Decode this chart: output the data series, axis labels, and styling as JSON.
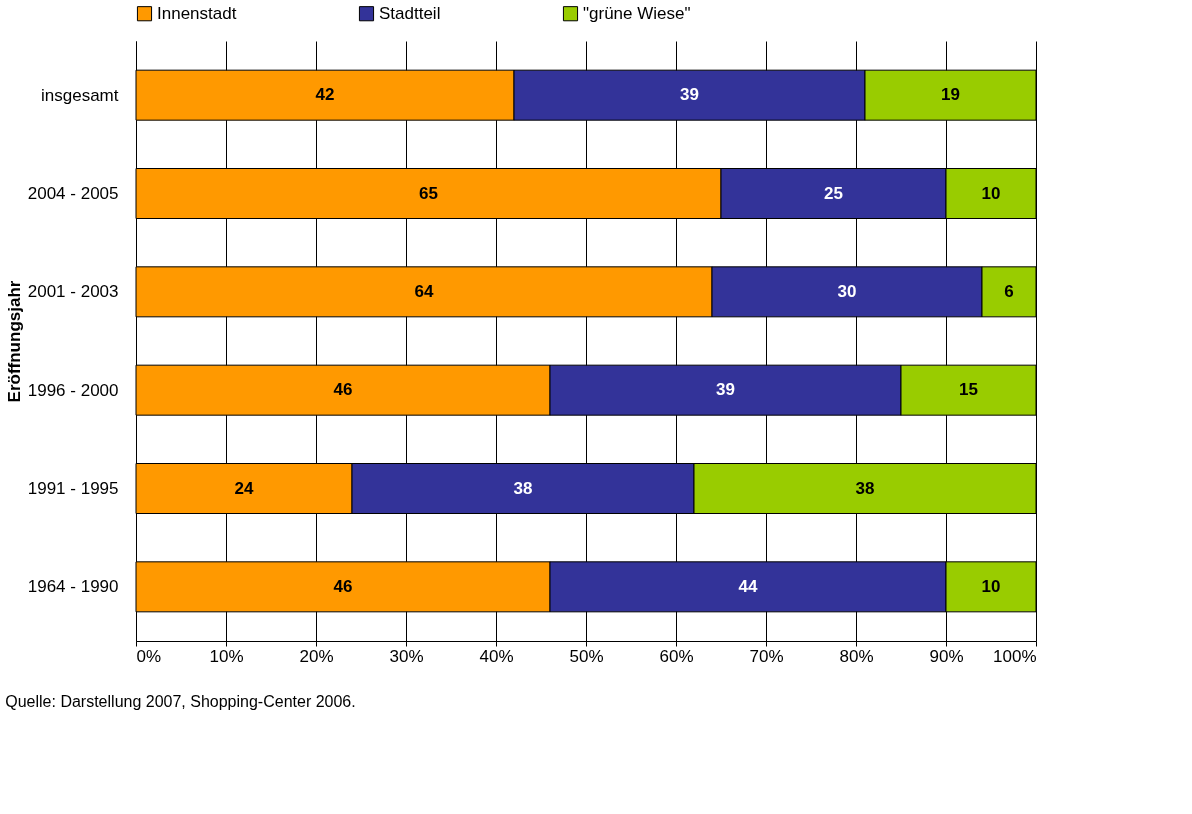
{
  "chart_data": {
    "type": "bar",
    "orientation": "horizontal",
    "stacked": true,
    "data_labels": true,
    "grid": "x",
    "legend": "top",
    "ylabel": "Eröffnungsjahr",
    "categories": [
      "insgesamt",
      "2004 - 2005",
      "2001 - 2003",
      "1996 - 2000",
      "1991 - 1995",
      "1964 - 1990"
    ],
    "series": [
      {
        "name": "Innenstadt",
        "color": "#ff9900",
        "values": [
          42,
          65,
          64,
          46,
          24,
          46
        ]
      },
      {
        "name": "Stadtteil",
        "color": "#333399",
        "values": [
          39,
          25,
          30,
          39,
          38,
          44
        ]
      },
      {
        "name": "\"grüne Wiese\"",
        "color": "#99cc00",
        "values": [
          19,
          10,
          6,
          15,
          38,
          10
        ]
      }
    ],
    "xlim": [
      0,
      100
    ],
    "xticks": [
      {
        "value": 0,
        "label": "0%"
      },
      {
        "value": 10,
        "label": "10%"
      },
      {
        "value": 20,
        "label": "20%"
      },
      {
        "value": 30,
        "label": "30%"
      },
      {
        "value": 40,
        "label": "40%"
      },
      {
        "value": 50,
        "label": "50%"
      },
      {
        "value": 60,
        "label": "60%"
      },
      {
        "value": 70,
        "label": "70%"
      },
      {
        "value": 80,
        "label": "80%"
      },
      {
        "value": 90,
        "label": "90%"
      },
      {
        "value": 100,
        "label": "100%"
      }
    ],
    "annotations": [
      "Quelle: Darstellung 2007, Shopping-Center 2006."
    ]
  }
}
